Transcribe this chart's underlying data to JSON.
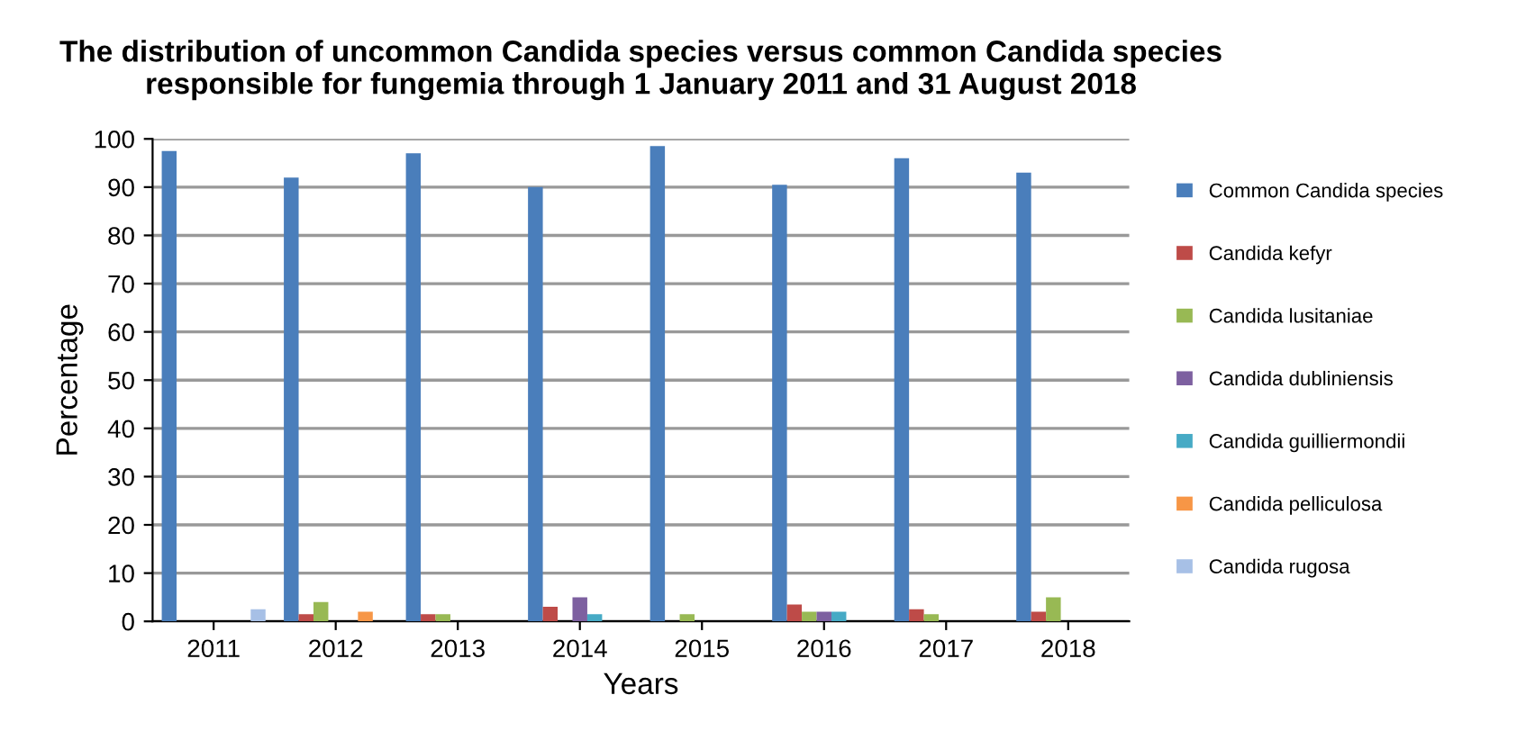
{
  "chart_data": {
    "type": "bar",
    "title": "The distribution of uncommon Candida species versus common Candida species\nresponsible for fungemia through 1 January 2011 and 31 August 2018",
    "xlabel": "Years",
    "ylabel": "Percentage",
    "categories": [
      "2011",
      "2012",
      "2013",
      "2014",
      "2015",
      "2016",
      "2017",
      "2018"
    ],
    "series": [
      {
        "name": "Common Candida species",
        "color": "#4a7ebb",
        "values": [
          97.5,
          92,
          97,
          90,
          98.5,
          90.5,
          96,
          93
        ]
      },
      {
        "name": "Candida kefyr",
        "color": "#be4b48",
        "values": [
          0,
          1.5,
          1.5,
          3,
          0,
          3.5,
          2.5,
          2
        ]
      },
      {
        "name": "Candida lusitaniae",
        "color": "#98b954",
        "values": [
          0,
          4,
          1.5,
          0,
          1.5,
          2,
          1.5,
          5
        ]
      },
      {
        "name": "Candida dubliniensis",
        "color": "#7d60a0",
        "values": [
          0,
          0,
          0,
          5,
          0,
          2,
          0,
          0
        ]
      },
      {
        "name": "Candida guilliermondii",
        "color": "#46aac5",
        "values": [
          0,
          0,
          0,
          1.5,
          0,
          2,
          0,
          0
        ]
      },
      {
        "name": "Candida pelliculosa",
        "color": "#f79646",
        "values": [
          0,
          2,
          0,
          0,
          0,
          0,
          0,
          0
        ]
      },
      {
        "name": "Candida rugosa",
        "color": "#a7c0e6",
        "values": [
          2.5,
          0,
          0,
          0,
          0,
          0,
          0,
          0
        ]
      }
    ],
    "ylim": [
      0,
      100
    ],
    "yticks": [
      0,
      10,
      20,
      30,
      40,
      50,
      60,
      70,
      80,
      90,
      100
    ],
    "grid": "y",
    "legend": "right"
  }
}
